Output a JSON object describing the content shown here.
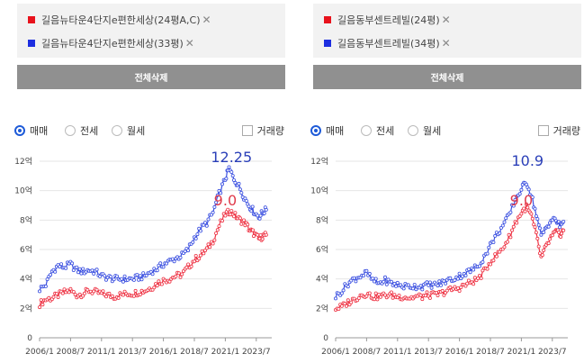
{
  "panels": [
    {
      "selections": [
        {
          "label": "길음뉴타운4단지e편한세상(24평A,C)",
          "color": "#e8121c",
          "remove": "✕"
        },
        {
          "label": "길음뉴타운4단지e편한세상(33평)",
          "color": "#1d2ee0",
          "remove": "✕"
        }
      ],
      "clear_label": "전체삭제",
      "radios": [
        "매매",
        "전세",
        "월세"
      ],
      "selected_radio": 0,
      "checkbox_label": "거래량"
    },
    {
      "selections": [
        {
          "label": "길음동부센트레빌(24평)",
          "color": "#e8121c",
          "remove": "✕"
        },
        {
          "label": "길음동부센트레빌(34평)",
          "color": "#1d2ee0",
          "remove": "✕"
        }
      ],
      "clear_label": "전체삭제",
      "radios": [
        "매매",
        "전세",
        "월세"
      ],
      "selected_radio": 0,
      "checkbox_label": "거래량"
    }
  ],
  "chart_data": [
    {
      "type": "line",
      "x_ticks": [
        "2006/1",
        "2008/7",
        "2011/1",
        "2013/7",
        "2016/1",
        "2018/7",
        "2021/1",
        "2023/7"
      ],
      "y_ticks": [
        "0",
        "2억",
        "4억",
        "6억",
        "8억",
        "10억",
        "12억"
      ],
      "ylim": [
        0,
        12
      ],
      "xlim": [
        2006.0,
        2024.75
      ],
      "grid": "horizontal",
      "colors": {
        "series_a": "#ee3344",
        "series_b": "#3a4fe0"
      },
      "series": [
        {
          "color": "#ee3344",
          "points": [
            [
              2006.0,
              2.3
            ],
            [
              2006.5,
              2.6
            ],
            [
              2007.0,
              2.7
            ],
            [
              2007.5,
              2.9
            ],
            [
              2008.0,
              3.1
            ],
            [
              2008.5,
              3.2
            ],
            [
              2009.0,
              2.9
            ],
            [
              2009.5,
              3.0
            ],
            [
              2010.0,
              3.2
            ],
            [
              2010.5,
              3.1
            ],
            [
              2011.0,
              3.0
            ],
            [
              2011.5,
              2.9
            ],
            [
              2012.0,
              2.8
            ],
            [
              2012.5,
              2.9
            ],
            [
              2013.0,
              3.0
            ],
            [
              2013.5,
              3.0
            ],
            [
              2014.0,
              3.1
            ],
            [
              2014.5,
              3.2
            ],
            [
              2015.0,
              3.4
            ],
            [
              2015.5,
              3.7
            ],
            [
              2016.0,
              3.9
            ],
            [
              2016.5,
              4.0
            ],
            [
              2017.0,
              4.2
            ],
            [
              2017.5,
              4.3
            ],
            [
              2018.0,
              4.8
            ],
            [
              2018.5,
              5.3
            ],
            [
              2019.0,
              5.6
            ],
            [
              2019.5,
              6.0
            ],
            [
              2020.0,
              6.6
            ],
            [
              2020.5,
              7.6
            ],
            [
              2021.0,
              8.4
            ],
            [
              2021.4,
              8.6
            ],
            [
              2021.8,
              8.3
            ],
            [
              2022.2,
              8.0
            ],
            [
              2022.6,
              7.8
            ],
            [
              2023.0,
              7.3
            ],
            [
              2023.3,
              7.1
            ],
            [
              2023.7,
              6.7
            ],
            [
              2024.0,
              6.9
            ],
            [
              2024.3,
              7.0
            ]
          ]
        },
        {
          "color": "#3a4fe0",
          "points": [
            [
              2006.0,
              3.3
            ],
            [
              2006.5,
              3.6
            ],
            [
              2007.0,
              4.5
            ],
            [
              2007.5,
              4.9
            ],
            [
              2008.0,
              4.8
            ],
            [
              2008.5,
              5.0
            ],
            [
              2009.0,
              4.6
            ],
            [
              2009.5,
              4.5
            ],
            [
              2010.0,
              4.6
            ],
            [
              2010.5,
              4.5
            ],
            [
              2011.0,
              4.2
            ],
            [
              2011.5,
              4.1
            ],
            [
              2012.0,
              4.0
            ],
            [
              2012.5,
              4.0
            ],
            [
              2013.0,
              4.0
            ],
            [
              2013.5,
              4.0
            ],
            [
              2014.0,
              4.1
            ],
            [
              2014.5,
              4.2
            ],
            [
              2015.0,
              4.5
            ],
            [
              2015.5,
              4.7
            ],
            [
              2016.0,
              5.0
            ],
            [
              2016.5,
              5.2
            ],
            [
              2017.0,
              5.4
            ],
            [
              2017.5,
              5.6
            ],
            [
              2018.0,
              6.0
            ],
            [
              2018.5,
              6.8
            ],
            [
              2019.0,
              7.4
            ],
            [
              2019.5,
              7.8
            ],
            [
              2020.0,
              8.5
            ],
            [
              2020.5,
              9.8
            ],
            [
              2021.0,
              10.8
            ],
            [
              2021.3,
              11.5
            ],
            [
              2021.7,
              10.8
            ],
            [
              2022.1,
              10.3
            ],
            [
              2022.5,
              9.6
            ],
            [
              2022.9,
              9.0
            ],
            [
              2023.3,
              8.6
            ],
            [
              2023.7,
              8.2
            ],
            [
              2024.0,
              8.5
            ],
            [
              2024.3,
              8.7
            ]
          ]
        }
      ],
      "annotations": [
        {
          "text": "12.25",
          "color": "#2a3fb8",
          "at": [
            2021.5,
            11.95
          ]
        },
        {
          "text": "9.0",
          "color": "#e03a4a",
          "at": [
            2021.0,
            9.0
          ]
        }
      ]
    },
    {
      "type": "line",
      "x_ticks": [
        "2006/1",
        "2008/7",
        "2011/1",
        "2013/7",
        "2016/1",
        "2018/7",
        "2021/1",
        "2023/7"
      ],
      "y_ticks": [
        "0",
        "2억",
        "4억",
        "6억",
        "8억",
        "10억",
        "12억"
      ],
      "ylim": [
        0,
        12
      ],
      "xlim": [
        2006.0,
        2024.75
      ],
      "grid": "horizontal",
      "colors": {
        "series_a": "#ee3344",
        "series_b": "#3a4fe0"
      },
      "series": [
        {
          "color": "#ee3344",
          "points": [
            [
              2006.0,
              2.0
            ],
            [
              2006.5,
              2.1
            ],
            [
              2007.0,
              2.4
            ],
            [
              2007.5,
              2.6
            ],
            [
              2008.0,
              2.9
            ],
            [
              2008.5,
              3.0
            ],
            [
              2009.0,
              2.8
            ],
            [
              2009.5,
              2.8
            ],
            [
              2010.0,
              2.9
            ],
            [
              2010.5,
              2.9
            ],
            [
              2011.0,
              2.8
            ],
            [
              2011.5,
              2.8
            ],
            [
              2012.0,
              2.7
            ],
            [
              2012.5,
              2.8
            ],
            [
              2013.0,
              2.8
            ],
            [
              2013.5,
              2.9
            ],
            [
              2014.0,
              2.9
            ],
            [
              2014.5,
              3.0
            ],
            [
              2015.0,
              3.2
            ],
            [
              2015.5,
              3.3
            ],
            [
              2016.0,
              3.4
            ],
            [
              2016.5,
              3.6
            ],
            [
              2017.0,
              3.8
            ],
            [
              2017.5,
              4.0
            ],
            [
              2018.0,
              4.5
            ],
            [
              2018.5,
              5.2
            ],
            [
              2019.0,
              5.6
            ],
            [
              2019.5,
              6.1
            ],
            [
              2020.0,
              6.8
            ],
            [
              2020.5,
              7.8
            ],
            [
              2021.0,
              8.5
            ],
            [
              2021.4,
              8.9
            ],
            [
              2021.8,
              8.3
            ],
            [
              2022.2,
              7.0
            ],
            [
              2022.6,
              5.4
            ],
            [
              2023.0,
              6.2
            ],
            [
              2023.4,
              6.8
            ],
            [
              2023.8,
              7.2
            ],
            [
              2024.1,
              7.0
            ],
            [
              2024.4,
              7.3
            ]
          ]
        },
        {
          "color": "#3a4fe0",
          "points": [
            [
              2006.0,
              2.8
            ],
            [
              2006.5,
              3.2
            ],
            [
              2007.0,
              3.7
            ],
            [
              2007.5,
              4.0
            ],
            [
              2008.0,
              4.2
            ],
            [
              2008.5,
              4.4
            ],
            [
              2009.0,
              3.9
            ],
            [
              2009.5,
              3.7
            ],
            [
              2010.0,
              3.9
            ],
            [
              2010.5,
              3.7
            ],
            [
              2011.0,
              3.6
            ],
            [
              2011.5,
              3.5
            ],
            [
              2012.0,
              3.5
            ],
            [
              2012.5,
              3.5
            ],
            [
              2013.0,
              3.5
            ],
            [
              2013.5,
              3.6
            ],
            [
              2014.0,
              3.6
            ],
            [
              2014.5,
              3.7
            ],
            [
              2015.0,
              3.9
            ],
            [
              2015.5,
              4.0
            ],
            [
              2016.0,
              4.2
            ],
            [
              2016.5,
              4.4
            ],
            [
              2017.0,
              4.6
            ],
            [
              2017.5,
              4.9
            ],
            [
              2018.0,
              5.5
            ],
            [
              2018.5,
              6.3
            ],
            [
              2019.0,
              7.0
            ],
            [
              2019.5,
              7.6
            ],
            [
              2020.0,
              8.3
            ],
            [
              2020.5,
              9.4
            ],
            [
              2021.0,
              10.1
            ],
            [
              2021.4,
              10.6
            ],
            [
              2021.8,
              9.7
            ],
            [
              2022.2,
              8.4
            ],
            [
              2022.6,
              6.9
            ],
            [
              2023.0,
              7.5
            ],
            [
              2023.4,
              8.0
            ],
            [
              2023.8,
              8.0
            ],
            [
              2024.1,
              7.6
            ],
            [
              2024.4,
              7.9
            ]
          ]
        }
      ],
      "annotations": [
        {
          "text": "10.9",
          "color": "#2a3fb8",
          "at": [
            2021.5,
            11.7
          ]
        },
        {
          "text": "9.0",
          "color": "#e03a4a",
          "at": [
            2021.0,
            9.0
          ]
        }
      ]
    }
  ]
}
